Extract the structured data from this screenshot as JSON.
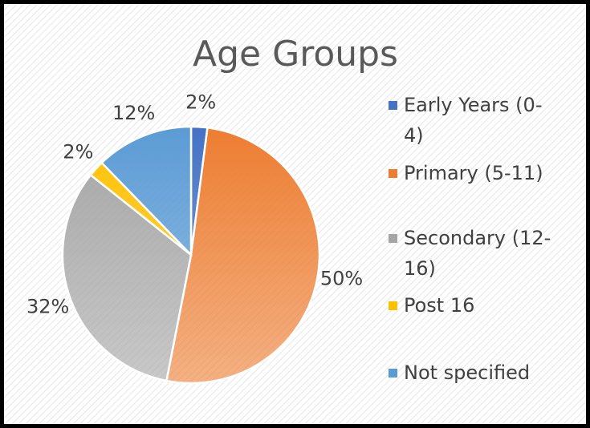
{
  "chart_data": {
    "type": "pie",
    "title": "Age Groups",
    "categories": [
      "Early Years (0-4)",
      "Primary (5-11)",
      "Secondary (12-16)",
      "Post 16",
      "Not specified"
    ],
    "values": [
      2,
      50,
      32,
      2,
      12
    ],
    "value_labels": [
      "2%",
      "50%",
      "32%",
      "2%",
      "12%"
    ],
    "colors": [
      "#4472c4",
      "#ed7d31",
      "#a5a5a5",
      "#ffc000",
      "#5b9bd5"
    ],
    "legend": "right"
  }
}
